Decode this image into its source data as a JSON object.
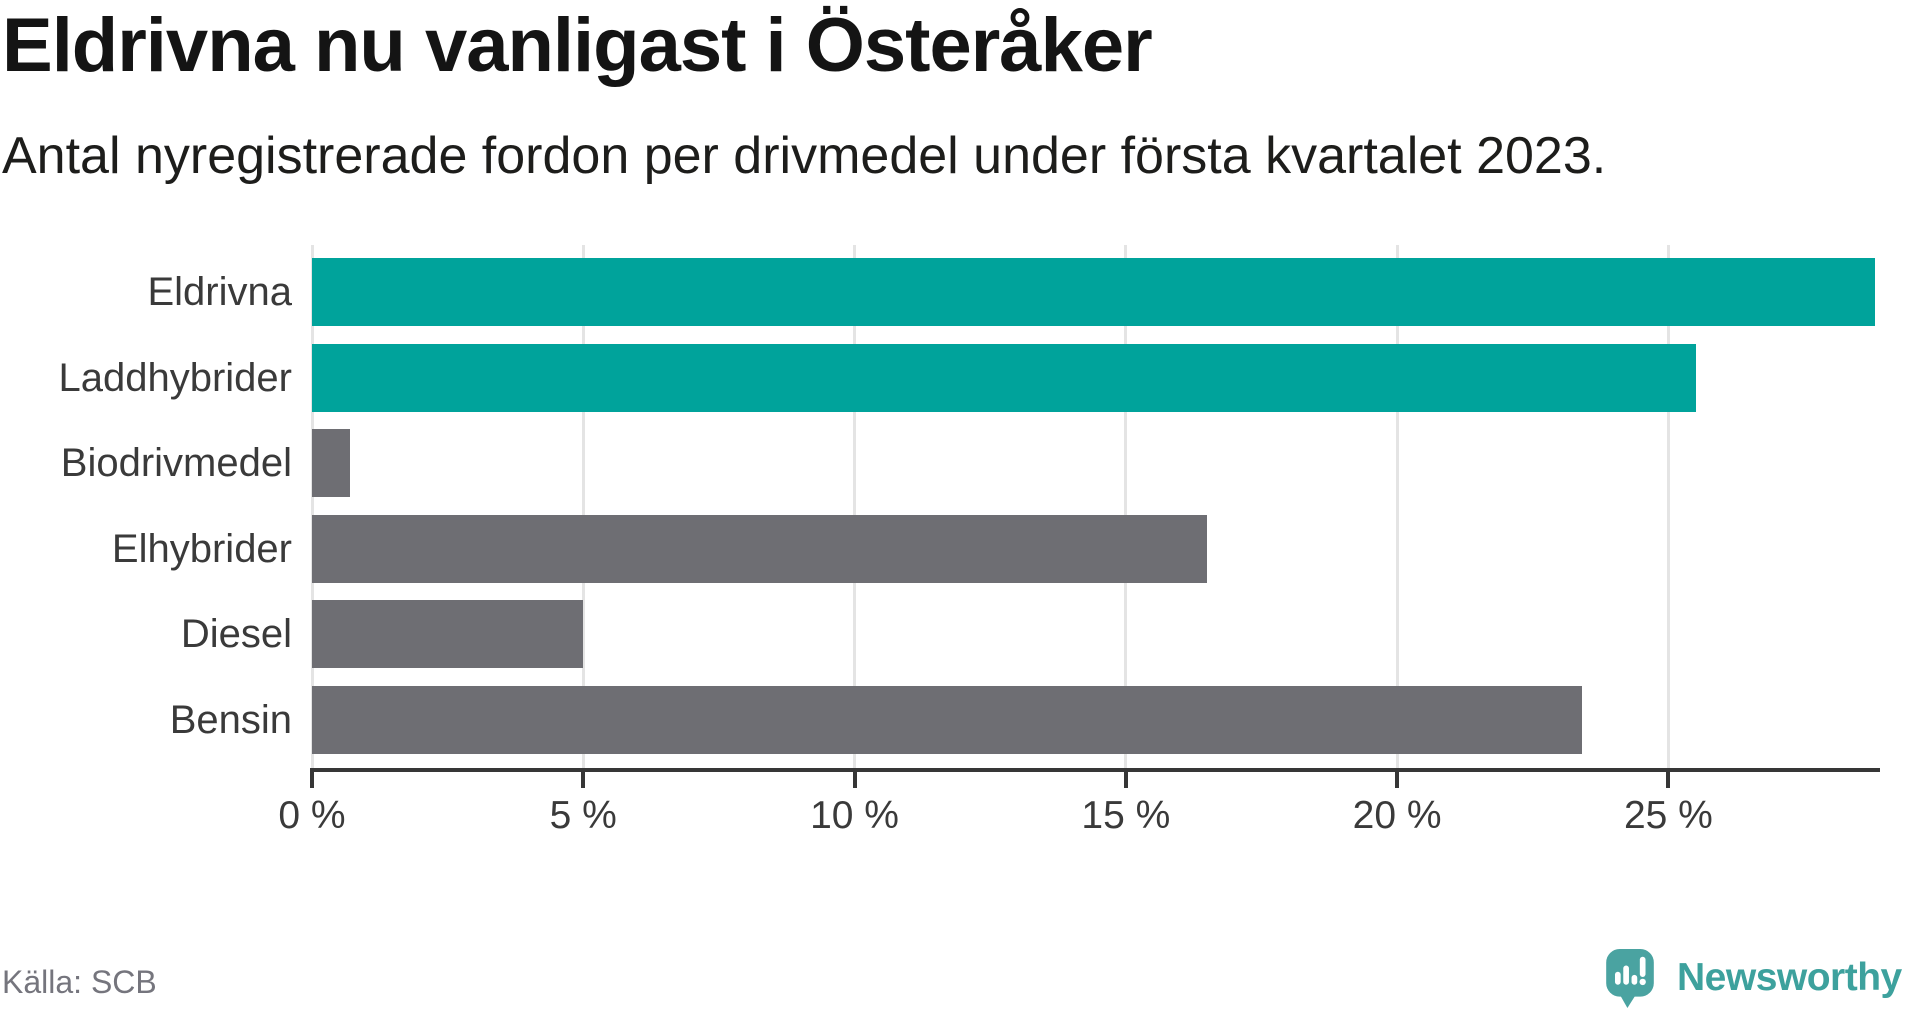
{
  "header": {
    "title": "Eldrivna nu vanligast i Österåker",
    "subtitle": "Antal nyregistrerade fordon per drivmedel under första kvartalet 2023."
  },
  "chart_data": {
    "type": "bar",
    "orientation": "horizontal",
    "title": "Eldrivna nu vanligast i Österåker",
    "subtitle": "Antal nyregistrerade fordon per drivmedel under första kvartalet 2023.",
    "categories": [
      "Eldrivna",
      "Laddhybrider",
      "Biodrivmedel",
      "Elhybrider",
      "Diesel",
      "Bensin"
    ],
    "values": [
      28.8,
      25.5,
      0.7,
      16.5,
      5.0,
      23.4
    ],
    "unit": "%",
    "bar_colors": [
      "#00a39b",
      "#00a39b",
      "#6e6e73",
      "#6e6e73",
      "#6e6e73",
      "#6e6e73"
    ],
    "highlight_color": "#00a39b",
    "default_color": "#6e6e73",
    "xlim": [
      0,
      28.9
    ],
    "x_ticks": [
      0,
      5,
      10,
      15,
      20,
      25
    ],
    "x_tick_labels": [
      "0 %",
      "5 %",
      "10 %",
      "15 %",
      "20 %",
      "25 %"
    ],
    "grid": true,
    "legend": "none"
  },
  "footer": {
    "source": "Källa: SCB",
    "brand": "Newsworthy",
    "brand_color": "#3da19d",
    "logo_color": "#4aa3a1"
  }
}
